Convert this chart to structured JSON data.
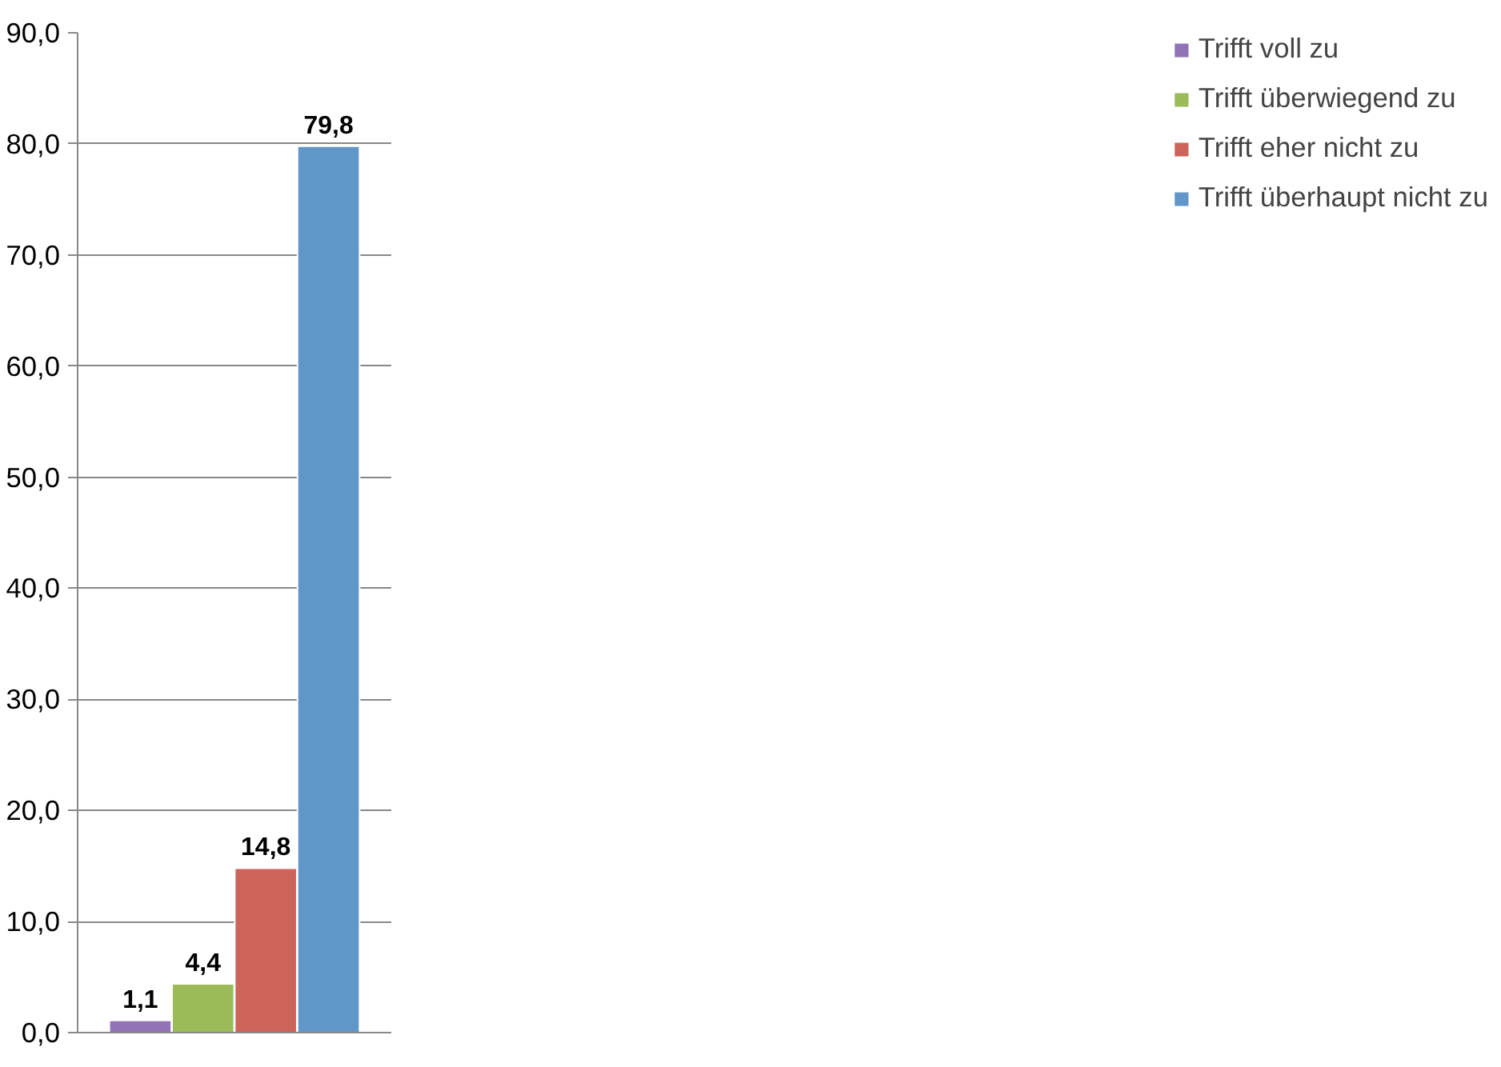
{
  "chart_data": {
    "type": "bar",
    "categories": [
      null
    ],
    "series": [
      {
        "name": "Trifft voll zu",
        "color": "#9173b6",
        "values": [
          1.1
        ],
        "value_labels": [
          "1,1"
        ]
      },
      {
        "name": "Trifft überwiegend zu",
        "color": "#9bbb59",
        "values": [
          4.4
        ],
        "value_labels": [
          "4,4"
        ]
      },
      {
        "name": "Trifft eher nicht zu",
        "color": "#cd645a",
        "values": [
          14.8
        ],
        "value_labels": [
          "14,8"
        ]
      },
      {
        "name": "Trifft überhaupt nicht zu",
        "color": "#6096c8",
        "values": [
          79.8
        ],
        "value_labels": [
          "79,8"
        ]
      }
    ],
    "ylim": [
      0,
      90
    ],
    "yticks": [
      {
        "value": 0,
        "label": "0,0"
      },
      {
        "value": 10,
        "label": "10,0"
      },
      {
        "value": 20,
        "label": "20,0"
      },
      {
        "value": 30,
        "label": "30,0"
      },
      {
        "value": 40,
        "label": "40,0"
      },
      {
        "value": 50,
        "label": "50,0"
      },
      {
        "value": 60,
        "label": "60,0"
      },
      {
        "value": 70,
        "label": "70,0"
      },
      {
        "value": 80,
        "label": "80,0"
      },
      {
        "value": 90,
        "label": "90,0"
      }
    ],
    "grid": "y",
    "legend": "right"
  }
}
